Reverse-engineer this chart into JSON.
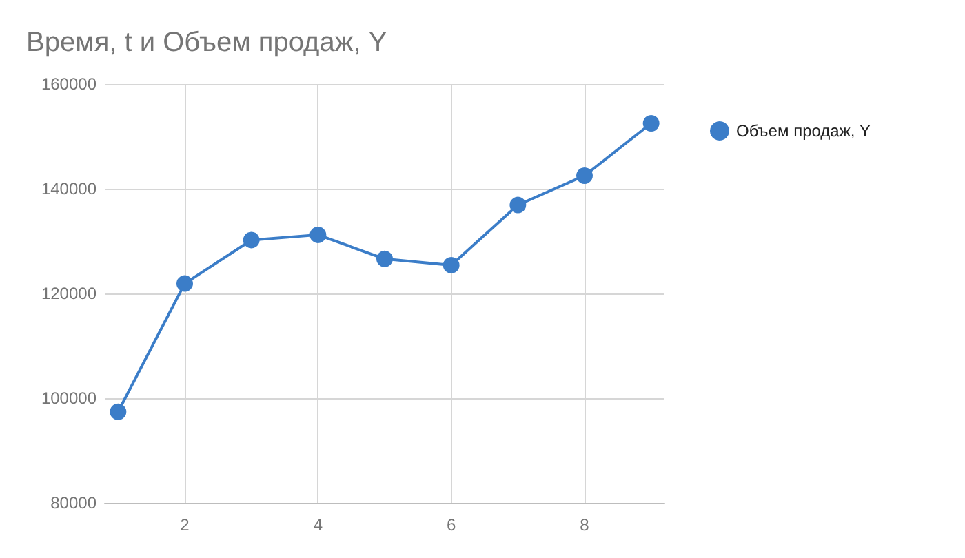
{
  "chart_data": {
    "type": "line",
    "title": "Время, t и Объем продаж, Y",
    "x": [
      1,
      2,
      3,
      4,
      5,
      6,
      7,
      8,
      9
    ],
    "series": [
      {
        "name": "Объем продаж, Y",
        "color": "#3b7dc8",
        "values": [
          97400,
          121900,
          130200,
          131200,
          126600,
          125400,
          136900,
          142500,
          152500
        ]
      }
    ],
    "xlim": [
      0.8,
      9.2
    ],
    "xticks": [
      2,
      4,
      6,
      8
    ],
    "ylim": [
      80000,
      160000
    ],
    "yticks": [
      80000,
      100000,
      120000,
      140000,
      160000
    ],
    "grid": true,
    "legend": "top right",
    "marker": "circle",
    "line_style": "solid"
  }
}
